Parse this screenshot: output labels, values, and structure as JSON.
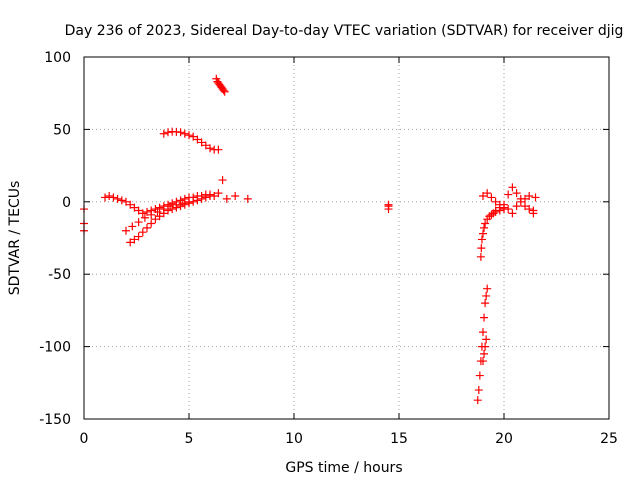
{
  "chart_data": {
    "type": "scatter",
    "title": "Day 236 of 2023, Sidereal Day-to-day VTEC variation (SDTVAR) for receiver djig",
    "xlabel": "GPS time / hours",
    "ylabel": "SDTVAR / TECUs",
    "xlim": [
      0,
      25
    ],
    "ylim": [
      -150,
      100
    ],
    "xticks": [
      0,
      5,
      10,
      15,
      20,
      25
    ],
    "xtick_labels": [
      "0",
      "5",
      "10",
      "15",
      "20",
      "25"
    ],
    "yticks": [
      -150,
      -100,
      -50,
      0,
      50,
      100
    ],
    "ytick_labels": [
      "-150",
      "-100",
      "-50",
      "0",
      "50",
      "100"
    ],
    "grid": true,
    "marker": "+",
    "color": "#ff0000",
    "series": [
      {
        "name": "arc_upper_positive",
        "x": [
          3.8,
          4.0,
          4.2,
          4.4,
          4.6,
          4.8,
          5.0,
          5.2,
          5.4,
          5.6,
          5.8,
          6.0,
          6.2,
          6.4
        ],
        "y": [
          47,
          48,
          48.5,
          48.3,
          48,
          47,
          46,
          45,
          43,
          41,
          39,
          37,
          36,
          36
        ]
      },
      {
        "name": "arc_high",
        "x": [
          6.3,
          6.35,
          6.4,
          6.45,
          6.5,
          6.55,
          6.6,
          6.65,
          6.7
        ],
        "y": [
          85,
          83,
          82,
          81,
          80,
          79,
          78,
          77,
          76
        ]
      },
      {
        "name": "band_near_zero",
        "x": [
          0.0,
          0.0,
          0.0,
          1.0,
          1.2,
          1.4,
          1.6,
          1.8,
          2.0,
          2.2,
          2.4,
          2.6,
          2.8,
          3.0,
          3.2,
          3.4,
          3.6,
          3.8,
          4.0,
          4.2,
          4.4,
          4.6,
          4.8,
          5.0,
          5.2,
          5.4,
          5.6,
          5.8,
          6.0,
          6.2,
          6.4,
          6.6,
          6.8,
          7.2,
          7.8
        ],
        "y": [
          -5,
          -15,
          -20,
          3,
          4,
          3,
          2,
          1,
          0,
          -2,
          -4,
          -6,
          -8,
          -7,
          -6,
          -5,
          -4,
          -3,
          -2,
          -1,
          0,
          1,
          2,
          3,
          3,
          4,
          4,
          5,
          5,
          4,
          6,
          15,
          2,
          4,
          2
        ]
      },
      {
        "name": "band_descending",
        "x": [
          2.2,
          2.4,
          2.6,
          2.8,
          3.0,
          3.2,
          3.4,
          3.6,
          3.8,
          4.0,
          4.2,
          4.4,
          4.6,
          4.8,
          5.0,
          5.2,
          5.4,
          5.6,
          5.8,
          6.0
        ],
        "y": [
          -28,
          -26,
          -24,
          -21,
          -18,
          -15,
          -12,
          -10,
          -8,
          -6,
          -5,
          -4,
          -3,
          -2,
          -1,
          0,
          1,
          2,
          3,
          4
        ]
      },
      {
        "name": "band_lower_mid",
        "x": [
          2.0,
          2.3,
          2.6,
          2.9,
          3.2,
          3.5,
          3.8,
          4.1,
          4.4,
          4.7,
          5.0
        ],
        "y": [
          -20,
          -17,
          -14,
          -11,
          -9,
          -7,
          -5,
          -3,
          -2,
          -1,
          0
        ]
      },
      {
        "name": "isolated_14h",
        "x": [
          14.5,
          14.5,
          14.5
        ],
        "y": [
          -3,
          -5,
          -2
        ]
      },
      {
        "name": "arc_19h_recovery",
        "x": [
          18.9,
          18.92,
          18.95,
          19.0,
          19.05,
          19.1,
          19.2,
          19.3,
          19.4,
          19.5,
          19.6,
          19.8,
          20.0
        ],
        "y": [
          -38,
          -32,
          -26,
          -22,
          -18,
          -15,
          -12,
          -10,
          -9,
          -8,
          -7,
          -6,
          -5
        ]
      },
      {
        "name": "drop_19h",
        "x": [
          18.75,
          18.8,
          18.85,
          18.9,
          18.95,
          19.0,
          19.05,
          19.1,
          19.15,
          19.2,
          19.0,
          19.05,
          19.1,
          19.15
        ],
        "y": [
          -137,
          -130,
          -120,
          -110,
          -100,
          -90,
          -80,
          -70,
          -65,
          -60,
          -110,
          -105,
          -100,
          -95
        ]
      },
      {
        "name": "cluster_20h",
        "x": [
          19.0,
          19.2,
          19.4,
          19.6,
          19.8,
          20.0,
          20.2,
          20.4,
          20.6,
          20.8,
          21.0,
          21.2,
          21.4,
          21.5,
          19.6,
          19.8,
          20.0,
          20.2,
          20.4,
          20.6,
          20.8,
          21.0,
          21.2,
          21.4
        ],
        "y": [
          4,
          6,
          3,
          0,
          -2,
          -4,
          5,
          10,
          6,
          2,
          -3,
          -5,
          -8,
          3,
          -6,
          -4,
          -2,
          -5,
          -8,
          -3,
          0,
          2,
          4,
          -6
        ]
      }
    ]
  }
}
